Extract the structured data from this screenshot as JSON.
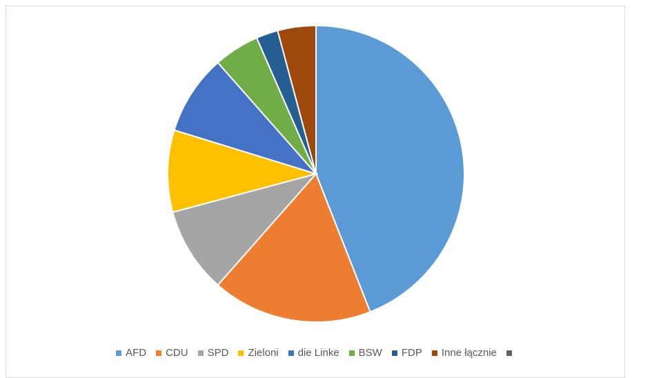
{
  "chart_data": {
    "type": "pie",
    "title": "",
    "legend_position": "bottom",
    "slices": [
      {
        "label": "AFD",
        "value": 44.4,
        "color": "#5B9BD5"
      },
      {
        "label": "CDU",
        "value": 17.6,
        "color": "#ED7D31"
      },
      {
        "label": "SPD",
        "value": 9.4,
        "color": "#A5A5A5"
      },
      {
        "label": "Zieloni",
        "value": 9.0,
        "color": "#FFC000"
      },
      {
        "label": "die Linke",
        "value": 8.8,
        "color": "#4472C4"
      },
      {
        "label": "BSW",
        "value": 5.0,
        "color": "#70AD47"
      },
      {
        "label": "FDP",
        "value": 2.4,
        "color": "#255E91"
      },
      {
        "label": "Inne łącznie",
        "value": 4.2,
        "color": "#9E480E"
      },
      {
        "label": "",
        "value": 0,
        "color": "#636363"
      }
    ]
  }
}
